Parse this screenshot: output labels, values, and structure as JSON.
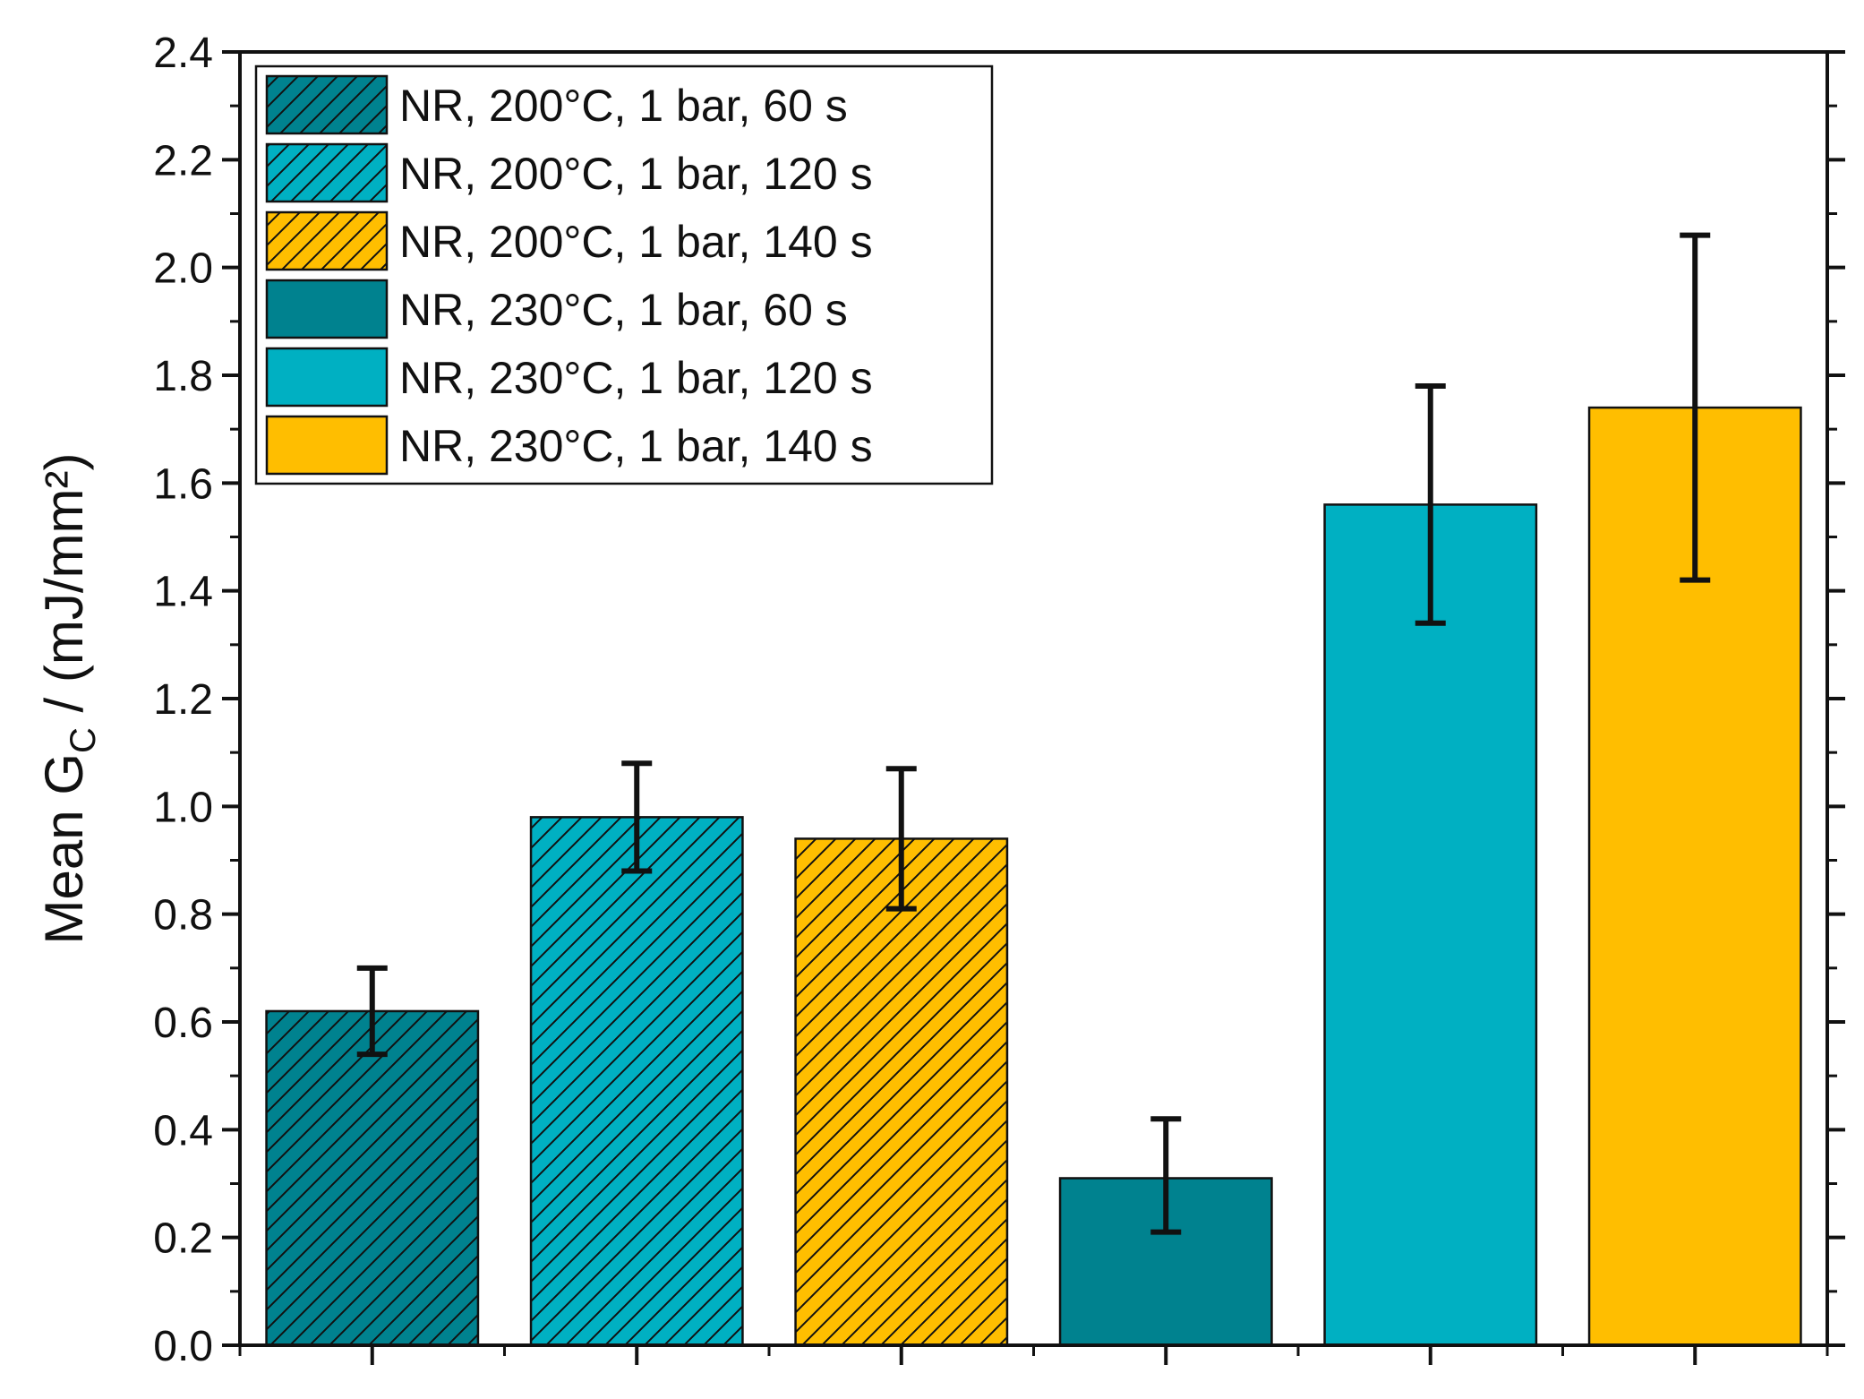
{
  "chart_data": {
    "type": "bar",
    "title": "",
    "xlabel": "",
    "ylabel": {
      "prefix": "Mean G",
      "subscript": "C",
      "suffix": " / (mJ/mm²)"
    },
    "ylim": [
      0,
      2.4
    ],
    "ytick_step": 0.2,
    "yticks": [
      "0.0",
      "0.2",
      "0.4",
      "0.6",
      "0.8",
      "1.0",
      "1.2",
      "1.4",
      "1.6",
      "1.8",
      "2.0",
      "2.2",
      "2.4"
    ],
    "bars": [
      {
        "label": "NR, 200°C, 1 bar, 60 s",
        "value": 0.62,
        "error_low": 0.54,
        "error_high": 0.7,
        "color": "#00828F",
        "hatched": true
      },
      {
        "label": "NR, 200°C, 1 bar, 120 s",
        "value": 0.98,
        "error_low": 0.88,
        "error_high": 1.08,
        "color": "#00B0C2",
        "hatched": true
      },
      {
        "label": "NR, 200°C, 1 bar, 140 s",
        "value": 0.94,
        "error_low": 0.81,
        "error_high": 1.07,
        "color": "#FFBE00",
        "hatched": true
      },
      {
        "label": "NR, 230°C, 1 bar, 60 s",
        "value": 0.31,
        "error_low": 0.21,
        "error_high": 0.42,
        "color": "#00828F",
        "hatched": false
      },
      {
        "label": "NR, 230°C, 1 bar, 120 s",
        "value": 1.56,
        "error_low": 1.34,
        "error_high": 1.78,
        "color": "#00B0C2",
        "hatched": false
      },
      {
        "label": "NR, 230°C, 1 bar, 140 s",
        "value": 1.74,
        "error_low": 1.42,
        "error_high": 2.06,
        "color": "#FFBE00",
        "hatched": false
      }
    ],
    "legend_position": "top-left",
    "grid": false
  }
}
